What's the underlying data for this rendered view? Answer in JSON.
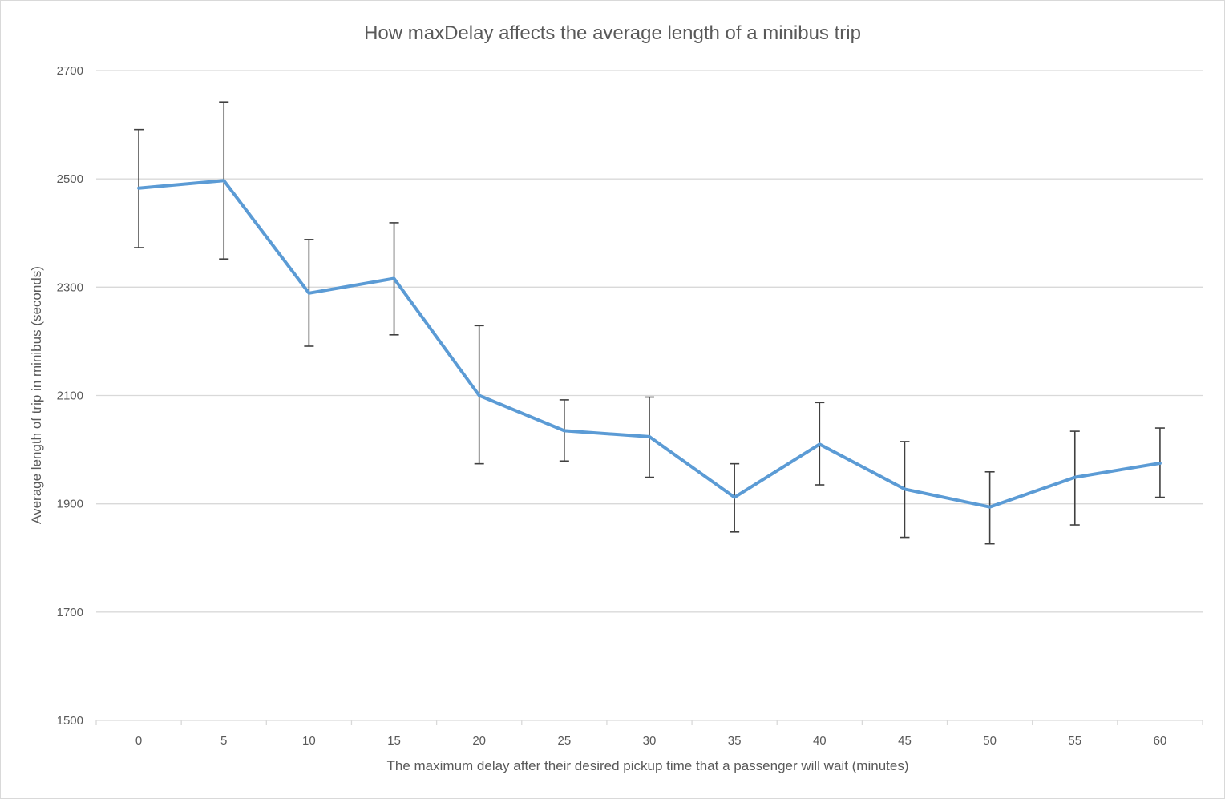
{
  "chart_data": {
    "type": "line",
    "title": "How maxDelay affects the average length of a minibus trip",
    "xlabel": "The maximum delay after their desired pickup time that a passenger will wait (minutes)",
    "ylabel": "Average length of trip in minibus (seconds)",
    "x": [
      "0",
      "5",
      "10",
      "15",
      "20",
      "25",
      "30",
      "35",
      "40",
      "45",
      "50",
      "55",
      "60"
    ],
    "series": [
      {
        "values": [
          2483,
          2497,
          2289,
          2316,
          2100,
          2035,
          2024,
          1912,
          2010,
          1927,
          1894,
          1949,
          1975
        ],
        "error_low": [
          2373,
          2352,
          2191,
          2212,
          1974,
          1979,
          1949,
          1848,
          1935,
          1838,
          1826,
          1861,
          1912
        ],
        "error_high": [
          2591,
          2642,
          2388,
          2419,
          2229,
          2092,
          2097,
          1974,
          2087,
          2015,
          1959,
          2034,
          2040
        ],
        "color": "#5b9bd5"
      }
    ],
    "yticks": [
      "1500",
      "1700",
      "1900",
      "2100",
      "2300",
      "2500",
      "2700"
    ],
    "ylim": [
      1500,
      2700
    ],
    "grid": true,
    "legend": "none"
  }
}
